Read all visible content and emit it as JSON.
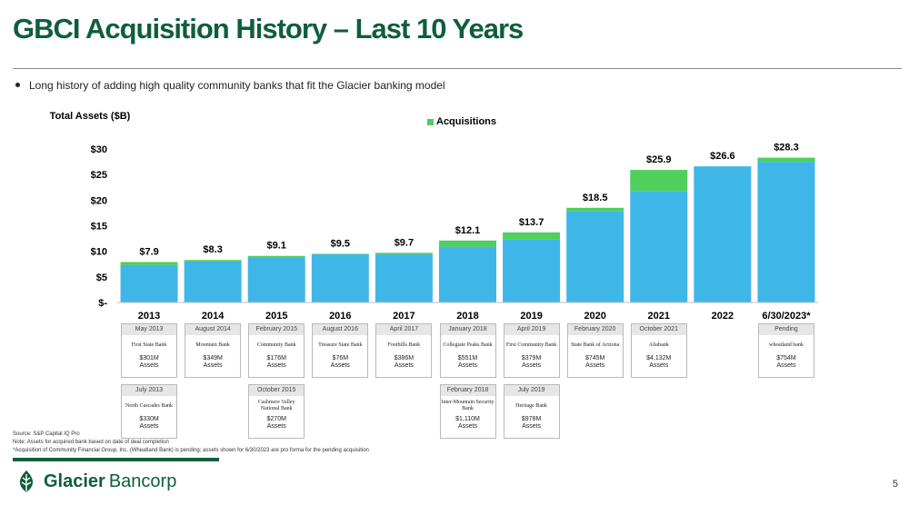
{
  "title": "GBCI Acquisition History – Last 10 Years",
  "bullet": "Long history of adding high quality community banks that fit the Glacier banking model",
  "colors": {
    "title": "#0f5e3c",
    "base_bar": "#3fb6e8",
    "acquisition_bar": "#4fcf5c",
    "brand": "#0f5e3c"
  },
  "chart_data": {
    "type": "bar",
    "stacked": true,
    "categories": [
      "2013",
      "2014",
      "2015",
      "2016",
      "2017",
      "2018",
      "2019",
      "2020",
      "2021",
      "2022",
      "6/30/2023*"
    ],
    "series": [
      {
        "name": "",
        "values": [
          7.3,
          8.0,
          8.8,
          9.4,
          9.4,
          10.9,
          12.3,
          17.8,
          21.8,
          26.6,
          27.5
        ]
      },
      {
        "name": "Acquisitions",
        "values": [
          0.6,
          0.3,
          0.3,
          0.1,
          0.3,
          1.2,
          1.4,
          0.7,
          4.1,
          0.0,
          0.8
        ]
      }
    ],
    "total_labels": [
      "$7.9",
      "$8.3",
      "$9.1",
      "$9.5",
      "$9.7",
      "$12.1",
      "$13.7",
      "$18.5",
      "$25.9",
      "$26.6",
      "$28.3"
    ],
    "ylabel": "Total Assets ($B)",
    "yticks": [
      "$-",
      "$5",
      "$10",
      "$15",
      "$20",
      "$25",
      "$30"
    ],
    "ylim": [
      0,
      30
    ],
    "legend": "top"
  },
  "cards_row1": [
    {
      "date": "May 2013",
      "logo": "First State Bank",
      "amount": "$301M",
      "unit": "Assets"
    },
    {
      "date": "August 2014",
      "logo": "Mountain Bank",
      "amount": "$349M",
      "unit": "Assets"
    },
    {
      "date": "February 2015",
      "logo": "Community Bank",
      "amount": "$176M",
      "unit": "Assets"
    },
    {
      "date": "August 2016",
      "logo": "Treasure State Bank",
      "amount": "$76M",
      "unit": "Assets"
    },
    {
      "date": "April 2017",
      "logo": "Foothills Bank",
      "amount": "$386M",
      "unit": "Assets"
    },
    {
      "date": "January 2018",
      "logo": "Collegiate Peaks Bank",
      "amount": "$551M",
      "unit": "Assets"
    },
    {
      "date": "April 2019",
      "logo": "First Community Bank",
      "amount": "$379M",
      "unit": "Assets"
    },
    {
      "date": "February 2020",
      "logo": "State Bank of Arizona",
      "amount": "$745M",
      "unit": "Assets"
    },
    {
      "date": "October 2021",
      "logo": "Altabank",
      "amount": "$4,132M",
      "unit": "Assets"
    },
    {
      "date": "Pending",
      "logo": "wheatland bank",
      "amount": "$754M",
      "unit": "Assets"
    }
  ],
  "cards_row2": [
    {
      "date": "July 2013",
      "logo": "North Cascades Bank",
      "amount": "$330M",
      "unit": "Assets"
    },
    {
      "date": "October 2015",
      "logo": "Cashmere Valley National Bank",
      "amount": "$270M",
      "unit": "Assets"
    },
    {
      "date": "February 2018",
      "logo": "Inter-Mountain Security Bank",
      "amount": "$1,110M",
      "unit": "Assets"
    },
    {
      "date": "July 2019",
      "logo": "Heritage Bank",
      "amount": "$978M",
      "unit": "Assets"
    }
  ],
  "footnotes": [
    "Source: S&P Capital IQ Pro",
    "Note: Assets for acquired bank based on date of deal completion",
    "*Acquisition of Community Financial Group, Inc. (Wheatland Bank) is pending; assets shown for 6/30/2023 are pro forma for the pending acquisition"
  ],
  "brand": {
    "name_bold": "Glacier",
    "name_light": "Bancorp"
  },
  "page_number": "5"
}
